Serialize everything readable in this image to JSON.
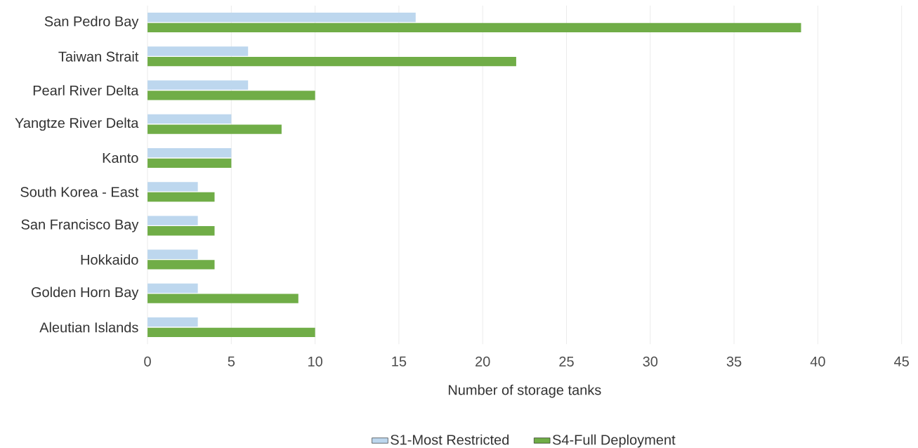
{
  "chart_data": {
    "type": "bar",
    "orientation": "horizontal",
    "xlabel": "Number of storage tanks",
    "categories": [
      "San Pedro Bay",
      "Taiwan Strait",
      "Pearl River Delta",
      "Yangtze River Delta",
      "Kanto",
      "South Korea - East",
      "San Francisco Bay",
      "Hokkaido",
      "Golden Horn Bay",
      "Aleutian Islands"
    ],
    "series": [
      {
        "name": "S1-Most Restricted",
        "color": "#bdd7ee",
        "values": [
          16,
          6,
          6,
          5,
          5,
          3,
          3,
          3,
          3,
          3
        ]
      },
      {
        "name": "S4-Full Deployment",
        "color": "#70ad47",
        "values": [
          39,
          22,
          10,
          8,
          5,
          4,
          4,
          4,
          9,
          10
        ]
      }
    ],
    "xlim": [
      0,
      45
    ],
    "xticks": [
      0,
      5,
      10,
      15,
      20,
      25,
      30,
      35,
      40,
      45
    ],
    "grid": "x",
    "legend": "bottom"
  }
}
